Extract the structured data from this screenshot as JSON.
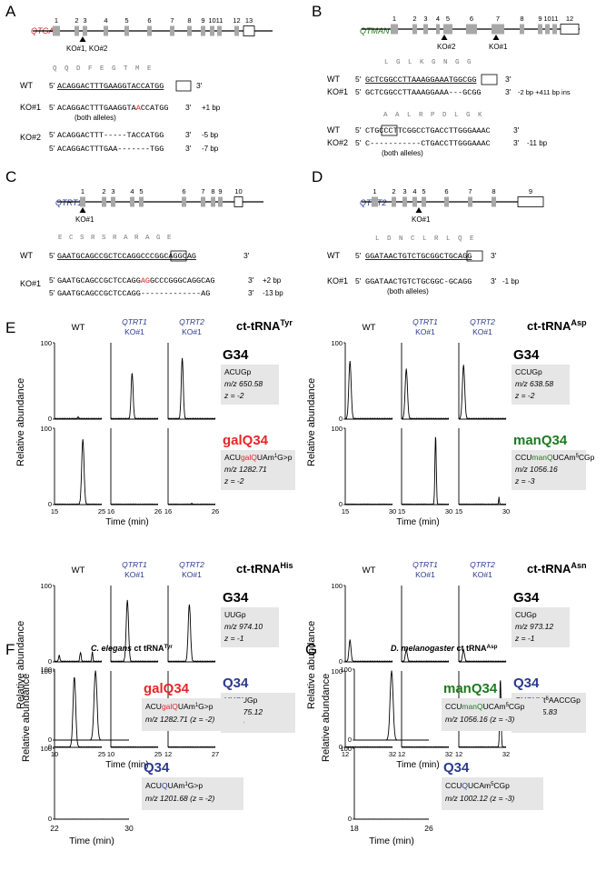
{
  "colors": {
    "red": "#e8262a",
    "green": "#1f7a1f",
    "blue": "#2b3a8f",
    "gray": "#a8a8a8",
    "box": "#e6e6e6"
  },
  "panelA": {
    "letter": "A",
    "gene": "QTGAL",
    "exons": [
      "1",
      "2",
      "3",
      "4",
      "5",
      "6",
      "7",
      "8",
      "9",
      "10",
      "11",
      "12",
      "13"
    ],
    "ko_label": "KO#1, KO#2",
    "aa": [
      "Q",
      "Q",
      "D",
      "F",
      "E",
      "G",
      "T",
      "M",
      "E"
    ],
    "wt_label": "WT",
    "five": "5'",
    "three": "3'",
    "wt_seq": "ACAGGACTTTGAAGGTACCATGG",
    "ko1_label": "KO#1",
    "ko1_pre": "ACAGGACTTTGAAGGTA",
    "ko1_ins": "A",
    "ko1_post": "CCATGG",
    "ko1_note": "+1 bp",
    "both": "(both alleles)",
    "ko2_label": "KO#2",
    "ko2_seq1": "ACAGGACTTT-----TACCATGG",
    "ko2_note1": "-5 bp",
    "ko2_seq2": "ACAGGACTTTGAA-------TGG",
    "ko2_note2": "-7 bp"
  },
  "panelB": {
    "letter": "B",
    "gene": "QTMAN",
    "exons": [
      "1",
      "2",
      "3",
      "4",
      "5",
      "6",
      "7",
      "8",
      "9",
      "10",
      "11",
      "12"
    ],
    "ko2": "KO#2",
    "ko1": "KO#1",
    "aa1": [
      "L",
      "G",
      "L",
      "K",
      "G",
      "N",
      "G",
      "G"
    ],
    "wt_label": "WT",
    "wt_seq1": "GCTCGGCCTTAAAGGAAATGGCGG",
    "ko1_label": "KO#1",
    "ko1_seq": "GCTCGGCCTTAAAGGAAA---GCGG",
    "ko1_note": "-2 bp +411 bp ins",
    "aa2": [
      "A",
      "A",
      "L",
      "R",
      "P",
      "D",
      "L",
      "G",
      "K"
    ],
    "wt_seq2": "CTGCCCTTCGGCCTGACCTTGGGAAAC",
    "ko2_label": "KO#2",
    "ko2_seq": "C-----------CTGACCTTGGGAAAC",
    "ko2_note": "-11 bp",
    "both": "(both alleles)",
    "five": "5'",
    "three": "3'"
  },
  "panelC": {
    "letter": "C",
    "gene": "QTRT1",
    "exons": [
      "1",
      "2",
      "3",
      "4",
      "5",
      "6",
      "7",
      "8",
      "9",
      "10"
    ],
    "ko": "KO#1",
    "aa": [
      "E",
      "C",
      "S",
      "R",
      "S",
      "R",
      "A",
      "R",
      "A",
      "G",
      "E"
    ],
    "wt_label": "WT",
    "wt_seq": "GAATGCAGCCGCTCCAGGCCCGGCAGGCAG",
    "ko_label": "KO#1",
    "ko_seq1_pre": "GAATGCAGCCGCTCCAGG",
    "ko_seq1_ins": "AG",
    "ko_seq1_post": "GCCCGGGCAGGCAG",
    "ko_note1": "+2 bp",
    "ko_seq2": "GAATGCAGCCGCTCCAGG-------------AG",
    "ko_note2": "-13 bp",
    "five": "5'",
    "three": "3'"
  },
  "panelD": {
    "letter": "D",
    "gene": "QTRT2",
    "exons": [
      "1",
      "2",
      "3",
      "4",
      "5",
      "6",
      "7",
      "8",
      "9"
    ],
    "ko": "KO#1",
    "aa": [
      "L",
      "D",
      "N",
      "C",
      "L",
      "R",
      "L",
      "Q",
      "E"
    ],
    "wt_label": "WT",
    "wt_seq": "GGATAACTGTCTGCGGCTGCAGG",
    "ko_label": "KO#1",
    "ko_seq": "GGATAACTGTCTGCGGC-GCAGG",
    "ko_note": "-1 bp",
    "both": "(both alleles)",
    "five": "5'",
    "three": "3'"
  },
  "panelE": {
    "letter": "E",
    "ylabel": "Relative abundance",
    "xlabel": "Time (min)",
    "col_wt": "WT",
    "col_q1": "QTRT1",
    "col_q2": "QTRT2",
    "col_ko": "KO#1",
    "blocks": [
      {
        "title": "ct-tRNA",
        "sup": "Tyr",
        "top_label": "G34",
        "top_seq": "ACUGp",
        "top_mz": "m/z 650.58",
        "top_z": "z = -2",
        "bot_label": "galQ34",
        "bot_color": "red",
        "bot_seq_a": "ACU",
        "bot_seq_mod": "galQ",
        "bot_seq_b": "UAm",
        "bot_seq_sup": "1",
        "bot_seq_c": "G>p",
        "bot_mz": "m/z 1282.71",
        "bot_z": "z = -2",
        "xticks": [
          [
            "15",
            "25"
          ],
          [
            "16",
            "26"
          ],
          [
            "16",
            "26"
          ]
        ]
      },
      {
        "title": "ct-tRNA",
        "sup": "Asp",
        "top_label": "G34",
        "top_seq": "CCUGp",
        "top_mz": "m/z 638.58",
        "top_z": "z = -2",
        "bot_label": "manQ34",
        "bot_color": "green",
        "bot_seq_a": "CCU",
        "bot_seq_mod": "manQ",
        "bot_seq_b": "UCAm",
        "bot_seq_sup": "5",
        "bot_seq_c": "CGp",
        "bot_mz": "m/z 1056.16",
        "bot_z": "z = -3",
        "xticks": [
          [
            "15",
            "30"
          ],
          [
            "15",
            "30"
          ],
          [
            "15",
            "30"
          ]
        ]
      },
      {
        "title": "ct-tRNA",
        "sup": "His",
        "top_label": "G34",
        "top_seq": "UUGp",
        "top_mz": "m/z 974.10",
        "top_z": "z = -1",
        "bot_label": "Q34",
        "bot_color": "blue",
        "bot_seq_a": "UU",
        "bot_seq_mod": "Q",
        "bot_seq_b": "UGp",
        "bot_seq_sup": "",
        "bot_seq_c": "",
        "bot_mz": "m/z 875.12",
        "bot_z": "z = -2",
        "xticks": [
          [
            "10",
            "25"
          ],
          [
            "10",
            "25"
          ],
          [
            "12",
            "27"
          ]
        ]
      },
      {
        "title": "ct-tRNA",
        "sup": "Asn",
        "top_label": "G34",
        "top_seq": "CUGp",
        "top_mz": "m/z 973.12",
        "top_z": "z = -1",
        "bot_label": "Q34",
        "bot_color": "blue",
        "bot_seq_a": "CU",
        "bot_seq_mod": "Q",
        "bot_seq_b": "UUt",
        "bot_seq_sup": "6",
        "bot_seq_c": "AACCGp",
        "bot_mz": "m/z 1155.83",
        "bot_z": "z = -3",
        "xticks": [
          [
            "12",
            "32"
          ],
          [
            "12",
            "32"
          ],
          [
            "12",
            "32"
          ]
        ]
      }
    ]
  },
  "panelF": {
    "letter": "F",
    "title_sp": "C. elegans",
    "title_rest": " ct tRNA",
    "title_sup": "Tyr",
    "top_label": "galQ34",
    "top_seq_a": "ACU",
    "top_seq_mod": "galQ",
    "top_seq_b": "UAm",
    "top_seq_sup": "1",
    "top_seq_c": "G>p",
    "top_mz": "m/z 1282.71 (z = -2)",
    "bot_label": "Q34",
    "bot_seq_a": "ACU",
    "bot_seq_mod": "Q",
    "bot_seq_b": "UAm",
    "bot_seq_sup": "1",
    "bot_seq_c": "G>p",
    "bot_mz": "m/z 1201.68 (z = -2)",
    "ylabel": "Relative abundance",
    "xlabel": "Time (min)",
    "x0": "22",
    "x1": "30"
  },
  "panelG": {
    "letter": "G",
    "title_sp": "D. melanogaster",
    "title_rest": " ct tRNA",
    "title_sup": "Asp",
    "top_label": "manQ34",
    "top_seq_a": "CCU",
    "top_seq_mod": "manQ",
    "top_seq_b": "UCAm",
    "top_seq_sup": "5",
    "top_seq_c": "CGp",
    "top_mz": "m/z 1056.16 (z = -3)",
    "bot_label": "Q34",
    "bot_seq_a": "CCU",
    "bot_seq_mod": "Q",
    "bot_seq_b": "UCAm",
    "bot_seq_sup": "5",
    "bot_seq_c": "CGp",
    "bot_mz": "m/z 1002.12 (z = -3)",
    "ylabel": "Relative abundance",
    "xlabel": "Time (min)",
    "x0": "18",
    "x1": "26"
  },
  "common": {
    "y0": "0",
    "y100": "100"
  }
}
